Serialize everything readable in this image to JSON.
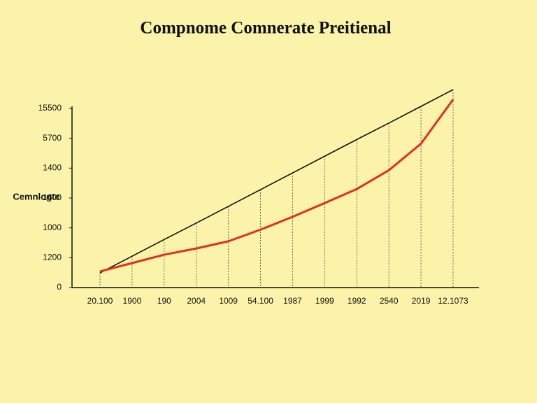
{
  "chart_data": {
    "type": "line",
    "title": "Compnome Comnerate Preitienal",
    "y_label": "Cemnlogte",
    "categories": [
      "20.100",
      "1900",
      "190",
      "2004",
      "1009",
      "54.100",
      "1987",
      "1999",
      "1992",
      "2540",
      "2019",
      "12.1073"
    ],
    "ylim": [
      0,
      6
    ],
    "yticks": [
      {
        "value": 0,
        "label": "0"
      },
      {
        "value": 1,
        "label": "1200"
      },
      {
        "value": 2,
        "label": "1000"
      },
      {
        "value": 3,
        "label": "1600"
      },
      {
        "value": 4,
        "label": "1400"
      },
      {
        "value": 5,
        "label": "5700"
      },
      {
        "value": 6,
        "label": "15500"
      }
    ],
    "grid": true,
    "series": [
      {
        "color": "#111111",
        "values": [
          0.49,
          1.05,
          1.61,
          2.16,
          2.72,
          3.28,
          3.84,
          4.4,
          4.96,
          5.51,
          6.07,
          6.63
        ]
      },
      {
        "color": "#e0301e",
        "values": [
          0.54,
          0.82,
          1.1,
          1.31,
          1.55,
          1.94,
          2.37,
          2.83,
          3.3,
          3.93,
          4.82,
          6.3
        ]
      }
    ]
  }
}
